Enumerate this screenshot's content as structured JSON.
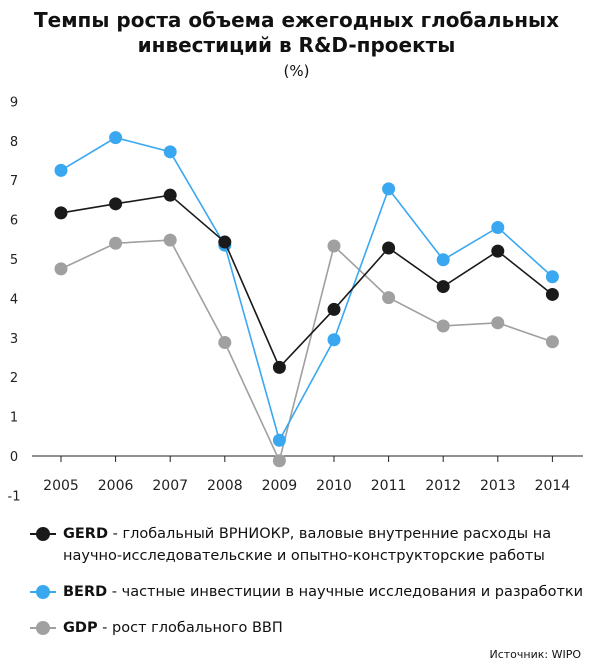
{
  "title_line1": "Темпы роста объема ежегодных глобальных",
  "title_line2": "инвестиций в R&D-проекты",
  "unit": "(%)",
  "source": "Источник: WIPO",
  "legend": [
    {
      "key": "GERD",
      "desc": " - глобальный ВРНИОКР, валовые внутренние расходы на научно-исследовательские и опытно-конструкторские работы",
      "color": "#1a1a1a"
    },
    {
      "key": "BERD",
      "desc": " - частные инвестиции в научные исследования и разработки",
      "color": "#3aa8f0"
    },
    {
      "key": "GDP",
      "desc": " - рост глобального ВВП",
      "color": "#a0a0a0"
    }
  ],
  "chart_data": {
    "type": "line",
    "x": [
      "2005",
      "2006",
      "2007",
      "2008",
      "2009",
      "2010",
      "2011",
      "2012",
      "2013",
      "2014"
    ],
    "ylim": [
      -1,
      9
    ],
    "yticks": [
      "9",
      "8",
      "7",
      "6",
      "5",
      "4",
      "3",
      "2",
      "1",
      "0",
      "-1"
    ],
    "grid": false,
    "series": [
      {
        "name": "GDP",
        "color": "#a0a0a0",
        "values": [
          4.75,
          5.4,
          5.48,
          2.88,
          -0.12,
          5.33,
          4.02,
          3.3,
          3.38,
          2.9
        ]
      },
      {
        "name": "BERD",
        "color": "#3aa8f0",
        "values": [
          7.25,
          8.08,
          7.72,
          5.35,
          0.4,
          2.95,
          6.78,
          4.98,
          5.8,
          4.55
        ]
      },
      {
        "name": "GERD",
        "color": "#1a1a1a",
        "values": [
          6.17,
          6.4,
          6.62,
          5.43,
          2.25,
          3.72,
          5.28,
          4.3,
          5.2,
          4.1
        ]
      }
    ]
  }
}
